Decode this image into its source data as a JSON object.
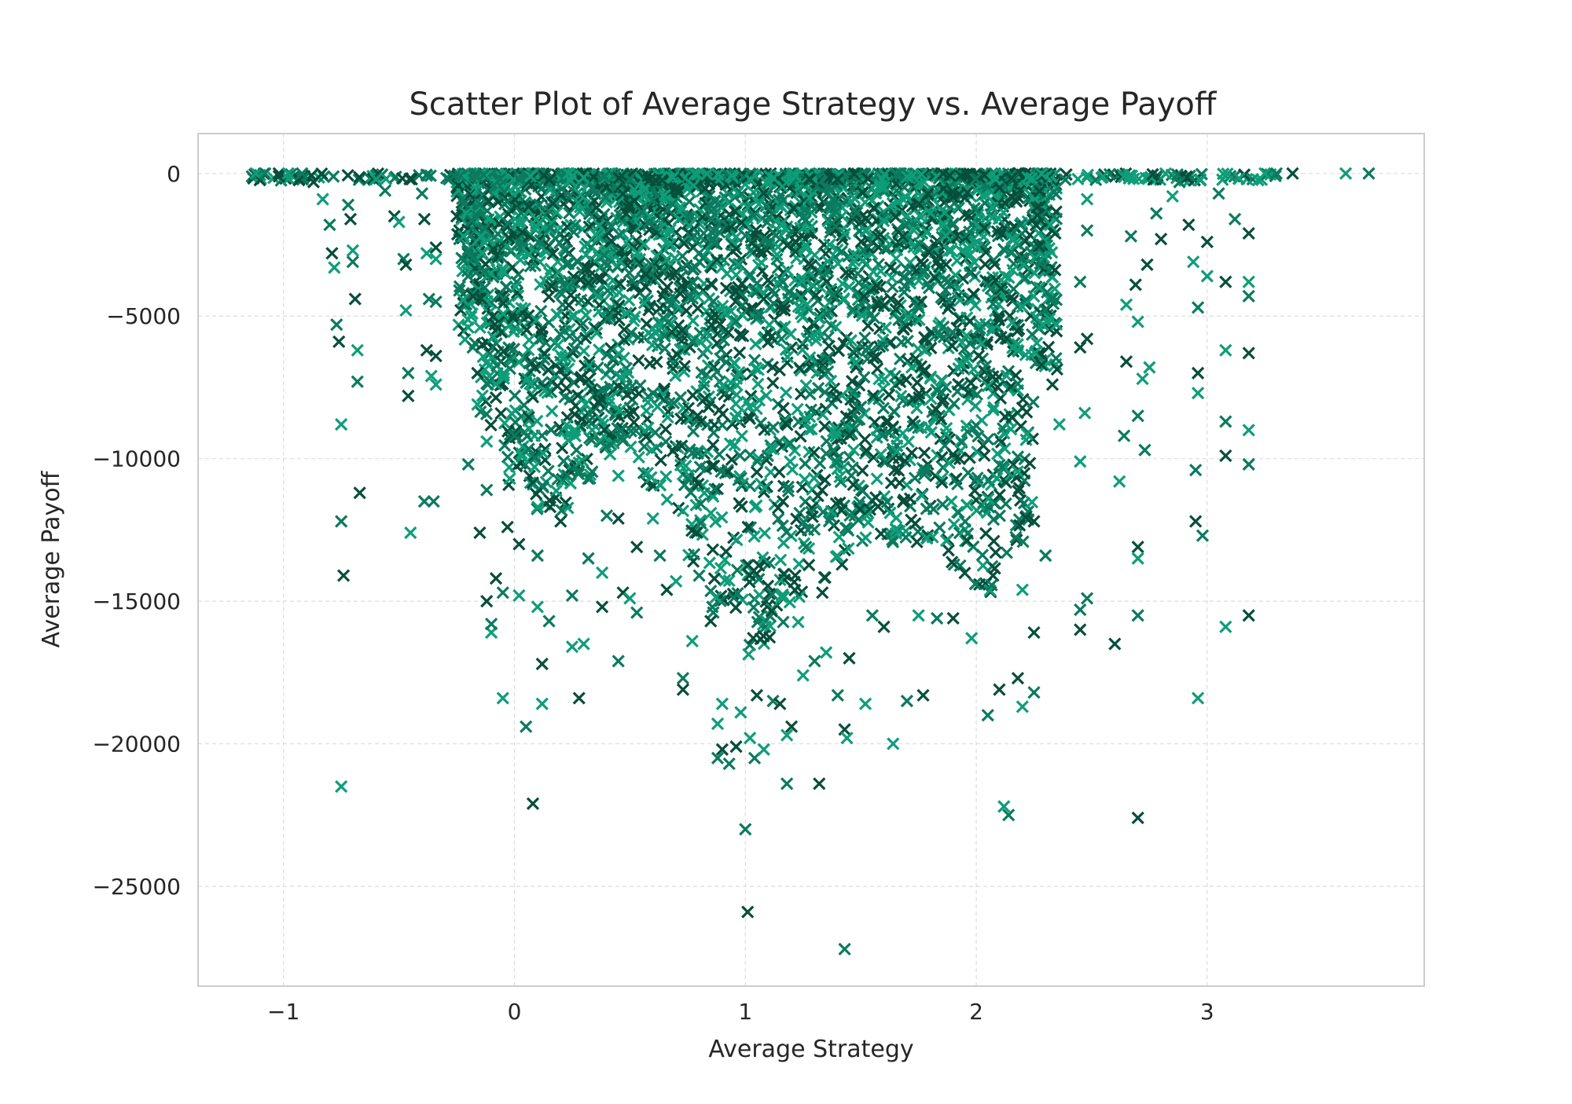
{
  "chart_data": {
    "type": "scatter",
    "title": "Scatter Plot of Average Strategy vs. Average Payoff",
    "xlabel": "Average Strategy",
    "ylabel": "Average Payoff",
    "xlim": [
      -1.37,
      3.94
    ],
    "ylim": [
      -28500,
      1400
    ],
    "x_ticks": [
      -1,
      0,
      1,
      2,
      3
    ],
    "x_tick_labels": [
      "−1",
      "0",
      "1",
      "2",
      "3"
    ],
    "y_ticks": [
      0,
      -5000,
      -10000,
      -15000,
      -20000,
      -25000
    ],
    "y_tick_labels": [
      "0",
      "−5000",
      "−10000",
      "−15000",
      "−20000",
      "−25000"
    ],
    "grid": true,
    "marker": "x",
    "colors": [
      "#0e9d78",
      "#0b7a5e",
      "#064e3b"
    ],
    "point_density_note": "",
    "points": [
      {
        "x": -1.12,
        "y": 0
      },
      {
        "x": -1.08,
        "y": 0
      },
      {
        "x": -1.02,
        "y": 0
      },
      {
        "x": -0.98,
        "y": 0
      },
      {
        "x": -0.92,
        "y": 0
      },
      {
        "x": -0.87,
        "y": -300
      },
      {
        "x": -0.83,
        "y": -900
      },
      {
        "x": -0.8,
        "y": -1800
      },
      {
        "x": -0.79,
        "y": -2800
      },
      {
        "x": -0.78,
        "y": -3300
      },
      {
        "x": -0.77,
        "y": -5300
      },
      {
        "x": -0.76,
        "y": -5900
      },
      {
        "x": -0.75,
        "y": -8800
      },
      {
        "x": -0.75,
        "y": -12200
      },
      {
        "x": -0.74,
        "y": -14100
      },
      {
        "x": -0.75,
        "y": -21500
      },
      {
        "x": -0.72,
        "y": -1100
      },
      {
        "x": -0.71,
        "y": -1600
      },
      {
        "x": -0.7,
        "y": -2700
      },
      {
        "x": -0.7,
        "y": -3100
      },
      {
        "x": -0.69,
        "y": -4400
      },
      {
        "x": -0.68,
        "y": -6200
      },
      {
        "x": -0.68,
        "y": -7300
      },
      {
        "x": -0.67,
        "y": -11200
      },
      {
        "x": -0.6,
        "y": -200
      },
      {
        "x": -0.56,
        "y": -600
      },
      {
        "x": -0.52,
        "y": -1500
      },
      {
        "x": -0.5,
        "y": -1700
      },
      {
        "x": -0.48,
        "y": -3000
      },
      {
        "x": -0.47,
        "y": -3200
      },
      {
        "x": -0.47,
        "y": -4800
      },
      {
        "x": -0.46,
        "y": -7000
      },
      {
        "x": -0.46,
        "y": -7800
      },
      {
        "x": -0.45,
        "y": -12600
      },
      {
        "x": -0.4,
        "y": -700
      },
      {
        "x": -0.39,
        "y": -1600
      },
      {
        "x": -0.38,
        "y": -2800
      },
      {
        "x": -0.37,
        "y": -4400
      },
      {
        "x": -0.38,
        "y": -6200
      },
      {
        "x": -0.36,
        "y": -7100
      },
      {
        "x": -0.39,
        "y": -11500
      },
      {
        "x": -0.34,
        "y": -2600
      },
      {
        "x": -0.34,
        "y": -3000
      },
      {
        "x": -0.34,
        "y": -4500
      },
      {
        "x": -0.34,
        "y": -6400
      },
      {
        "x": -0.34,
        "y": -7400
      },
      {
        "x": -0.35,
        "y": -11500
      },
      {
        "x": -0.25,
        "y": -1500
      },
      {
        "x": -0.22,
        "y": -2200
      },
      {
        "x": -0.2,
        "y": -3600
      },
      {
        "x": -0.18,
        "y": -4300
      },
      {
        "x": -0.2,
        "y": -5400
      },
      {
        "x": -0.18,
        "y": -6100
      },
      {
        "x": -0.16,
        "y": -7000
      },
      {
        "x": -0.16,
        "y": -8100
      },
      {
        "x": -0.2,
        "y": -10200
      },
      {
        "x": -0.15,
        "y": -12600
      },
      {
        "x": -0.12,
        "y": -9400
      },
      {
        "x": -0.12,
        "y": -11100
      },
      {
        "x": -0.12,
        "y": -15000
      },
      {
        "x": -0.1,
        "y": -16100
      },
      {
        "x": -0.1,
        "y": -15800
      },
      {
        "x": -0.08,
        "y": -14200
      },
      {
        "x": -0.05,
        "y": -18400
      },
      {
        "x": -0.05,
        "y": -14700
      },
      {
        "x": -0.03,
        "y": -12400
      },
      {
        "x": -0.02,
        "y": -10700
      },
      {
        "x": 0.0,
        "y": -9200
      },
      {
        "x": 0.02,
        "y": -13000
      },
      {
        "x": 0.02,
        "y": -14800
      },
      {
        "x": 0.05,
        "y": -19400
      },
      {
        "x": 0.08,
        "y": -22100
      },
      {
        "x": 0.1,
        "y": -15200
      },
      {
        "x": 0.1,
        "y": -13400
      },
      {
        "x": 0.12,
        "y": -17200
      },
      {
        "x": 0.12,
        "y": -18600
      },
      {
        "x": 0.15,
        "y": -15700
      },
      {
        "x": 0.2,
        "y": -12200
      },
      {
        "x": 0.25,
        "y": -16600
      },
      {
        "x": 0.25,
        "y": -14800
      },
      {
        "x": 0.28,
        "y": -18400
      },
      {
        "x": 0.3,
        "y": -16500
      },
      {
        "x": 0.32,
        "y": -13500
      },
      {
        "x": 0.38,
        "y": -15200
      },
      {
        "x": 0.38,
        "y": -14000
      },
      {
        "x": 0.4,
        "y": -12000
      },
      {
        "x": 0.45,
        "y": -12100
      },
      {
        "x": 0.45,
        "y": -10600
      },
      {
        "x": 0.45,
        "y": -17100
      },
      {
        "x": 0.47,
        "y": -14700
      },
      {
        "x": 0.5,
        "y": -14900
      },
      {
        "x": 0.53,
        "y": -15400
      },
      {
        "x": 0.53,
        "y": -13100
      },
      {
        "x": 0.6,
        "y": -12100
      },
      {
        "x": 0.63,
        "y": -13400
      },
      {
        "x": 0.66,
        "y": -14600
      },
      {
        "x": 0.7,
        "y": -14300
      },
      {
        "x": 0.73,
        "y": -17700
      },
      {
        "x": 0.73,
        "y": -18100
      },
      {
        "x": 0.77,
        "y": -16400
      },
      {
        "x": 0.8,
        "y": -14100
      },
      {
        "x": 0.85,
        "y": -15700
      },
      {
        "x": 0.88,
        "y": -19300
      },
      {
        "x": 0.88,
        "y": -20500
      },
      {
        "x": 0.9,
        "y": -20200
      },
      {
        "x": 0.9,
        "y": -18600
      },
      {
        "x": 0.93,
        "y": -20700
      },
      {
        "x": 0.96,
        "y": -20100
      },
      {
        "x": 0.98,
        "y": -18900
      },
      {
        "x": 1.0,
        "y": -23000
      },
      {
        "x": 1.01,
        "y": -25900
      },
      {
        "x": 1.02,
        "y": -19800
      },
      {
        "x": 1.04,
        "y": -20500
      },
      {
        "x": 1.05,
        "y": -18300
      },
      {
        "x": 1.08,
        "y": -20200
      },
      {
        "x": 1.12,
        "y": -18500
      },
      {
        "x": 1.15,
        "y": -18600
      },
      {
        "x": 1.18,
        "y": -19700
      },
      {
        "x": 1.18,
        "y": -21400
      },
      {
        "x": 1.2,
        "y": -19400
      },
      {
        "x": 1.25,
        "y": -17600
      },
      {
        "x": 1.3,
        "y": -17100
      },
      {
        "x": 1.32,
        "y": -21400
      },
      {
        "x": 1.35,
        "y": -16800
      },
      {
        "x": 1.4,
        "y": -18300
      },
      {
        "x": 1.43,
        "y": -19500
      },
      {
        "x": 1.44,
        "y": -19800
      },
      {
        "x": 1.43,
        "y": -27200
      },
      {
        "x": 1.45,
        "y": -17000
      },
      {
        "x": 1.52,
        "y": -18600
      },
      {
        "x": 1.55,
        "y": -15500
      },
      {
        "x": 1.6,
        "y": -15900
      },
      {
        "x": 1.64,
        "y": -20000
      },
      {
        "x": 1.7,
        "y": -18500
      },
      {
        "x": 1.77,
        "y": -18300
      },
      {
        "x": 1.75,
        "y": -15500
      },
      {
        "x": 1.83,
        "y": -15600
      },
      {
        "x": 1.9,
        "y": -15600
      },
      {
        "x": 1.98,
        "y": -16300
      },
      {
        "x": 2.05,
        "y": -19000
      },
      {
        "x": 2.1,
        "y": -18100
      },
      {
        "x": 2.12,
        "y": -22200
      },
      {
        "x": 2.14,
        "y": -22500
      },
      {
        "x": 2.18,
        "y": -17700
      },
      {
        "x": 2.2,
        "y": -18700
      },
      {
        "x": 2.25,
        "y": -18200
      },
      {
        "x": 2.25,
        "y": -16100
      },
      {
        "x": 2.2,
        "y": -14600
      },
      {
        "x": 2.3,
        "y": -13400
      },
      {
        "x": 2.25,
        "y": -12200
      },
      {
        "x": 2.32,
        "y": -1800
      },
      {
        "x": 2.33,
        "y": -4400
      },
      {
        "x": 2.33,
        "y": -7400
      },
      {
        "x": 2.36,
        "y": -8800
      },
      {
        "x": 2.45,
        "y": -3800
      },
      {
        "x": 2.45,
        "y": -6100
      },
      {
        "x": 2.45,
        "y": -10100
      },
      {
        "x": 2.45,
        "y": -15300
      },
      {
        "x": 2.45,
        "y": -16000
      },
      {
        "x": 2.48,
        "y": -900
      },
      {
        "x": 2.48,
        "y": -2000
      },
      {
        "x": 2.48,
        "y": -5800
      },
      {
        "x": 2.47,
        "y": -8400
      },
      {
        "x": 2.48,
        "y": -14900
      },
      {
        "x": 2.6,
        "y": -16500
      },
      {
        "x": 2.62,
        "y": -10800
      },
      {
        "x": 2.64,
        "y": -9200
      },
      {
        "x": 2.65,
        "y": -6600
      },
      {
        "x": 2.65,
        "y": -4600
      },
      {
        "x": 2.67,
        "y": -2200
      },
      {
        "x": 2.69,
        "y": -3900
      },
      {
        "x": 2.7,
        "y": -5200
      },
      {
        "x": 2.7,
        "y": -8500
      },
      {
        "x": 2.7,
        "y": -13100
      },
      {
        "x": 2.7,
        "y": -13500
      },
      {
        "x": 2.7,
        "y": -15500
      },
      {
        "x": 2.7,
        "y": -22600
      },
      {
        "x": 2.72,
        "y": -7200
      },
      {
        "x": 2.73,
        "y": -9700
      },
      {
        "x": 2.74,
        "y": -3200
      },
      {
        "x": 2.75,
        "y": -6800
      },
      {
        "x": 2.78,
        "y": -1400
      },
      {
        "x": 2.8,
        "y": -2300
      },
      {
        "x": 2.85,
        "y": -800
      },
      {
        "x": 2.88,
        "y": -300
      },
      {
        "x": 2.92,
        "y": -1800
      },
      {
        "x": 2.94,
        "y": -3100
      },
      {
        "x": 2.96,
        "y": -4700
      },
      {
        "x": 2.96,
        "y": -7000
      },
      {
        "x": 2.96,
        "y": -7700
      },
      {
        "x": 2.95,
        "y": -10400
      },
      {
        "x": 2.95,
        "y": -12200
      },
      {
        "x": 2.96,
        "y": -18400
      },
      {
        "x": 2.98,
        "y": -12700
      },
      {
        "x": 3.0,
        "y": -2400
      },
      {
        "x": 3.0,
        "y": -3600
      },
      {
        "x": 3.05,
        "y": -700
      },
      {
        "x": 3.08,
        "y": -3800
      },
      {
        "x": 3.08,
        "y": -6200
      },
      {
        "x": 3.08,
        "y": -8700
      },
      {
        "x": 3.08,
        "y": -9900
      },
      {
        "x": 3.08,
        "y": -15900
      },
      {
        "x": 3.12,
        "y": -1600
      },
      {
        "x": 3.18,
        "y": -2100
      },
      {
        "x": 3.18,
        "y": -3800
      },
      {
        "x": 3.18,
        "y": -4300
      },
      {
        "x": 3.18,
        "y": -6300
      },
      {
        "x": 3.18,
        "y": -9000
      },
      {
        "x": 3.18,
        "y": -10200
      },
      {
        "x": 3.18,
        "y": -15500
      },
      {
        "x": 3.25,
        "y": 0
      },
      {
        "x": 3.3,
        "y": 0
      },
      {
        "x": 3.37,
        "y": 0
      },
      {
        "x": 3.6,
        "y": 0
      },
      {
        "x": 3.7,
        "y": 0
      }
    ],
    "dense_band": {
      "x_centers": [
        -0.2,
        -0.1,
        0.0,
        0.1,
        0.2,
        0.3,
        0.4,
        0.5,
        0.6,
        0.7,
        0.8,
        0.9,
        1.0,
        1.1,
        1.2,
        1.3,
        1.4,
        1.5,
        1.6,
        1.7,
        1.8,
        1.9,
        2.0,
        2.1,
        2.2,
        2.3
      ],
      "y_depths": [
        -6000,
        -9000,
        -11000,
        -12000,
        -12000,
        -11000,
        -10000,
        -10000,
        -11000,
        -12000,
        -14000,
        -16000,
        -17000,
        -17000,
        -16000,
        -15000,
        -14000,
        -13000,
        -13000,
        -13000,
        -13000,
        -14000,
        -15000,
        -15000,
        -13000,
        -7000
      ]
    }
  }
}
